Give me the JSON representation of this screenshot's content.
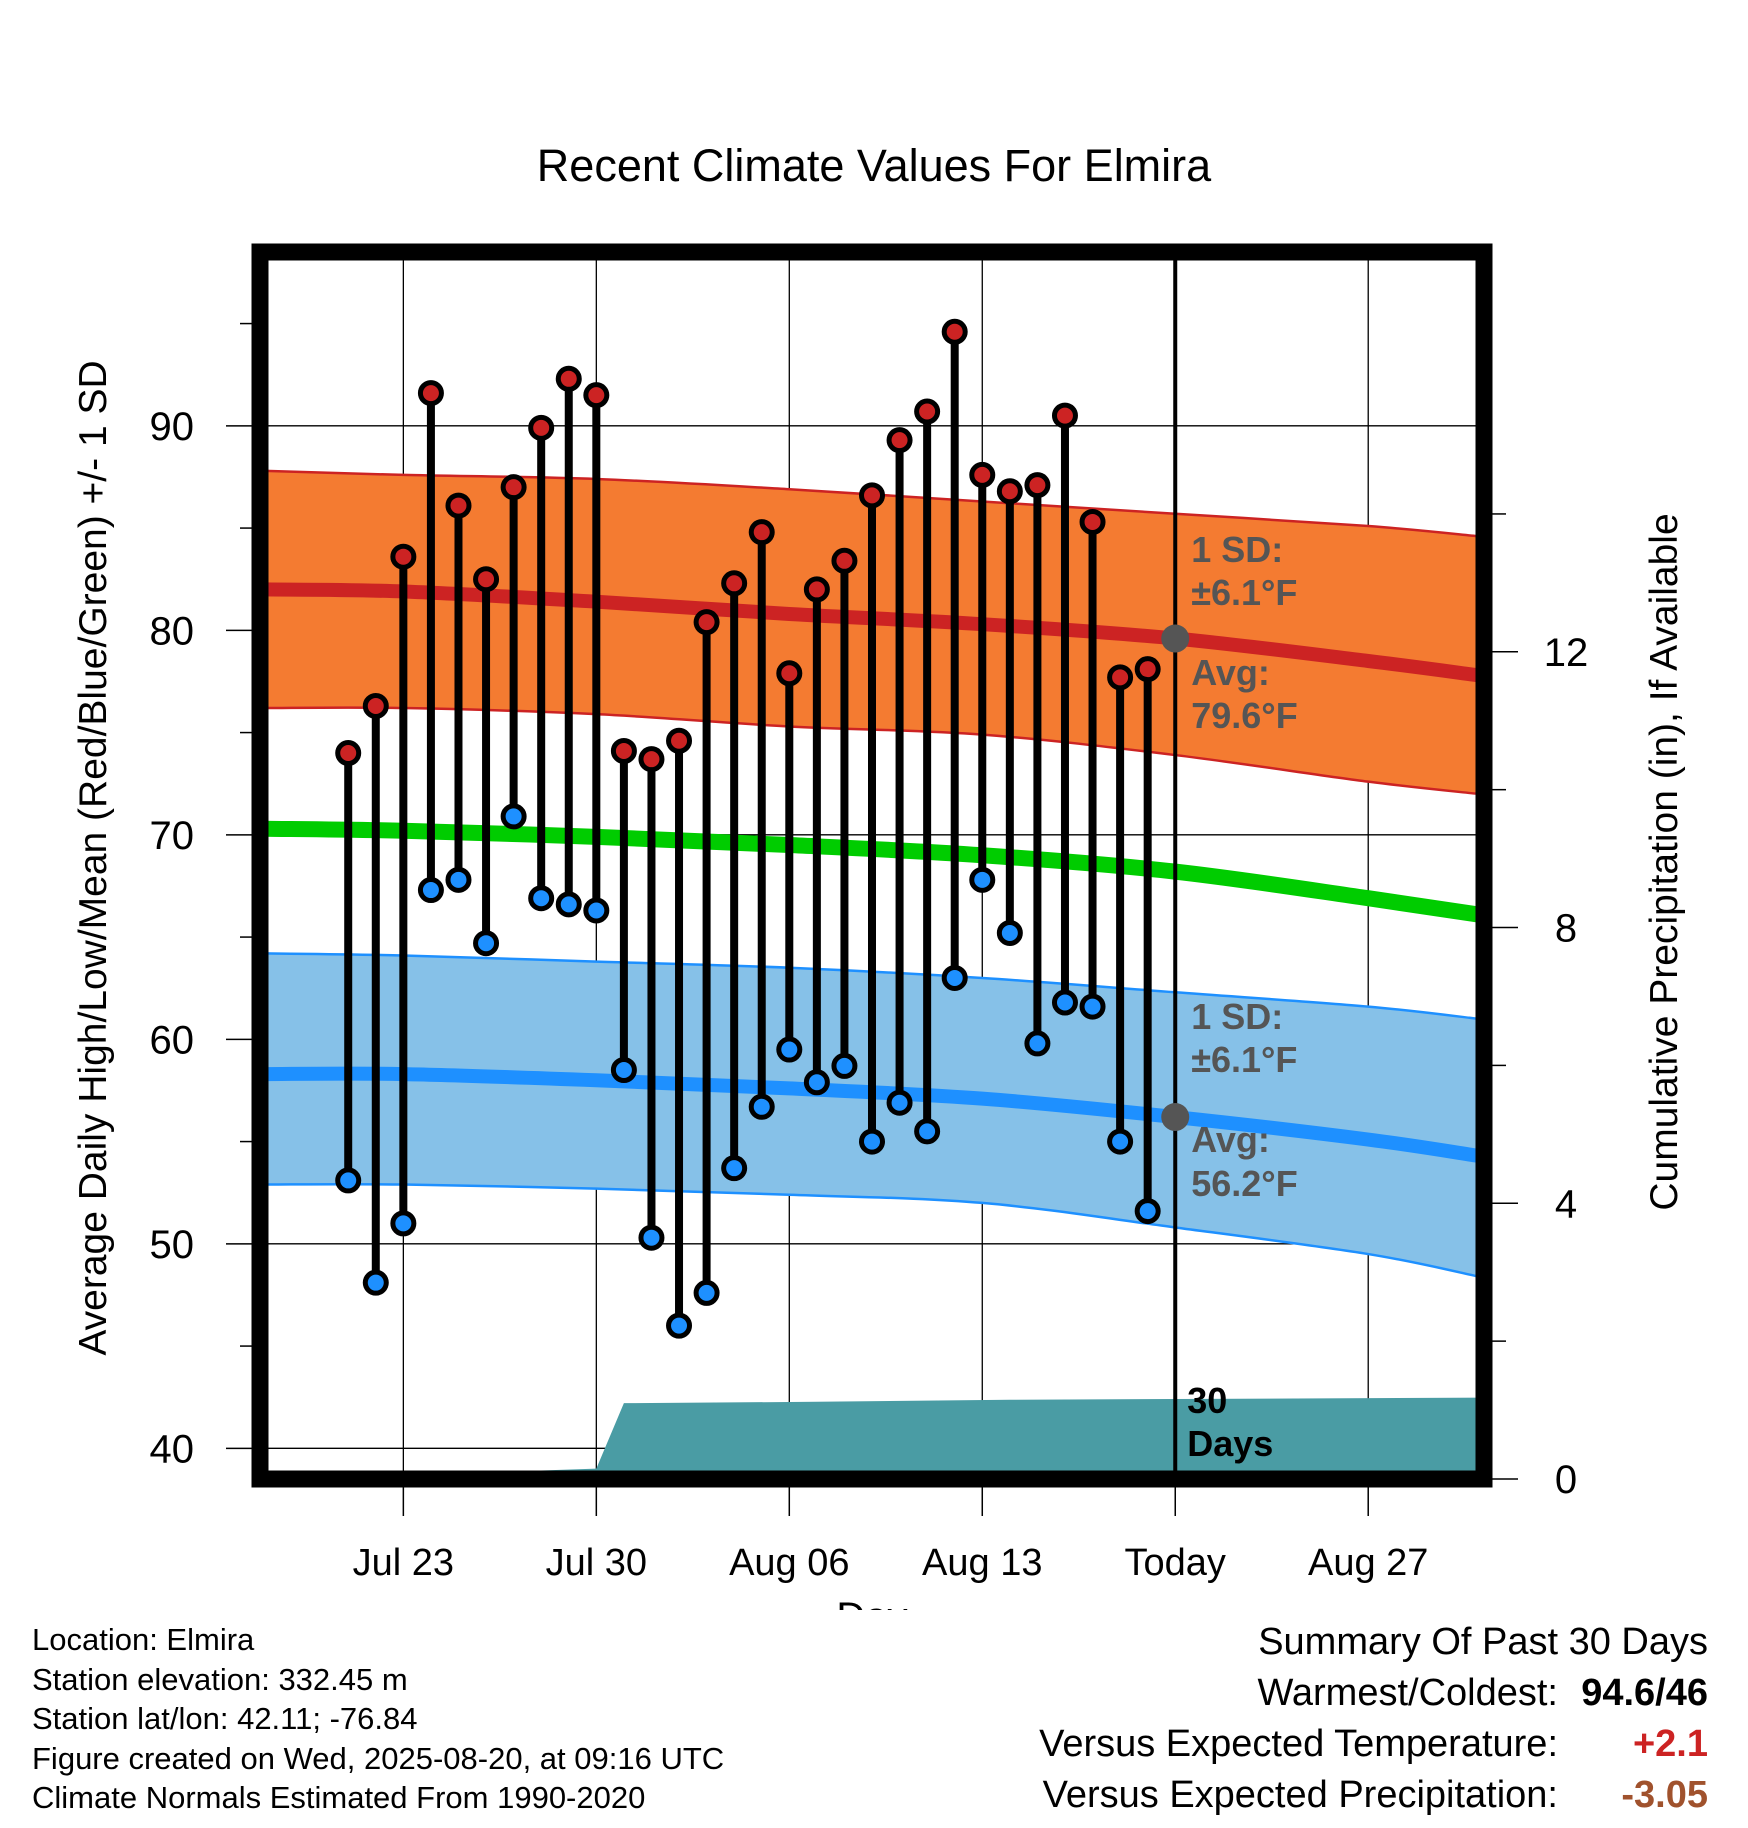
{
  "chart_data": {
    "type": "line",
    "title": "Recent Climate Values For Elmira",
    "xlabel": "Day",
    "ylabel_left": "Average Daily High/Low/Mean (Red/Blue/Green) +/- 1 SD",
    "ylabel_right": "Cumulative Precipitation (in), If Available",
    "y_left_range": [
      38.5,
      98.5
    ],
    "y_left_ticks": [
      "40",
      "50",
      "60",
      "70",
      "80",
      "90"
    ],
    "y_right_range": [
      0,
      17.8
    ],
    "y_right_ticks": [
      "0",
      "4",
      "8",
      "12"
    ],
    "x_range_days": [
      -33.2,
      11.2
    ],
    "x_ticks": [
      {
        "day": -28,
        "label": "Jul 23"
      },
      {
        "day": -21,
        "label": "Jul 30"
      },
      {
        "day": -14,
        "label": "Aug 06"
      },
      {
        "day": -7,
        "label": "Aug 13"
      },
      {
        "day": 0,
        "label": "Today"
      },
      {
        "day": 7,
        "label": "Aug 27"
      }
    ],
    "today_day": 0,
    "today_label": [
      "30",
      "Days"
    ],
    "grid": true,
    "observed": [
      {
        "day": -30,
        "high": 74.0,
        "low": 53.1
      },
      {
        "day": -29,
        "high": 76.3,
        "low": 48.1
      },
      {
        "day": -28,
        "high": 83.6,
        "low": 51.0
      },
      {
        "day": -27,
        "high": 91.6,
        "low": 67.3
      },
      {
        "day": -26,
        "high": 86.1,
        "low": 67.8
      },
      {
        "day": -25,
        "high": 82.5,
        "low": 64.7
      },
      {
        "day": -24,
        "high": 87.0,
        "low": 70.9
      },
      {
        "day": -23,
        "high": 89.9,
        "low": 66.9
      },
      {
        "day": -22,
        "high": 92.3,
        "low": 66.6
      },
      {
        "day": -21,
        "high": 91.5,
        "low": 66.3
      },
      {
        "day": -20,
        "high": 74.1,
        "low": 58.5
      },
      {
        "day": -19,
        "high": 73.7,
        "low": 50.3
      },
      {
        "day": -18,
        "high": 74.6,
        "low": 46.0
      },
      {
        "day": -17,
        "high": 80.4,
        "low": 47.6
      },
      {
        "day": -16,
        "high": 82.3,
        "low": 53.7
      },
      {
        "day": -15,
        "high": 84.8,
        "low": 56.7
      },
      {
        "day": -14,
        "high": 77.9,
        "low": 59.5
      },
      {
        "day": -13,
        "high": 82.0,
        "low": 57.9
      },
      {
        "day": -12,
        "high": 83.4,
        "low": 58.7
      },
      {
        "day": -11,
        "high": 86.6,
        "low": 55.0
      },
      {
        "day": -10,
        "high": 89.3,
        "low": 56.9
      },
      {
        "day": -9,
        "high": 90.7,
        "low": 55.5
      },
      {
        "day": -8,
        "high": 94.6,
        "low": 63.0
      },
      {
        "day": -7,
        "high": 87.6,
        "low": 67.8
      },
      {
        "day": -6,
        "high": 86.8,
        "low": 65.2
      },
      {
        "day": -5,
        "high": 87.1,
        "low": 59.8
      },
      {
        "day": -4,
        "high": 90.5,
        "low": 61.8
      },
      {
        "day": -3,
        "high": 85.3,
        "low": 61.6
      },
      {
        "day": -2,
        "high": 77.7,
        "low": 55.0
      },
      {
        "day": -1,
        "high": 78.1,
        "low": 51.6
      }
    ],
    "normal_curves": {
      "days": [
        -33,
        -28,
        -21,
        -14,
        -7,
        0,
        7,
        11
      ],
      "high_mean": [
        82.0,
        81.9,
        81.4,
        80.8,
        80.3,
        79.6,
        78.5,
        77.8
      ],
      "high_upper": [
        87.8,
        87.6,
        87.4,
        86.9,
        86.3,
        85.7,
        85.1,
        84.6
      ],
      "high_lower": [
        76.2,
        76.2,
        75.9,
        75.3,
        74.9,
        73.9,
        72.6,
        72.0
      ],
      "mean_line": [
        70.3,
        70.2,
        69.9,
        69.5,
        69.0,
        68.2,
        66.9,
        66.1
      ],
      "low_mean": [
        58.3,
        58.3,
        58.0,
        57.6,
        57.1,
        56.2,
        55.1,
        54.3
      ],
      "low_upper": [
        64.2,
        64.1,
        63.8,
        63.5,
        63.0,
        62.3,
        61.6,
        61.0
      ],
      "low_lower": [
        52.9,
        52.9,
        52.7,
        52.4,
        52.0,
        50.8,
        49.5,
        48.4
      ]
    },
    "today_markers": {
      "high_avg": 79.6,
      "low_avg": 56.2
    },
    "annotations": {
      "high_sd_title": "1 SD:",
      "high_sd_value": "±6.1°F",
      "high_avg_title": "Avg:",
      "high_avg_value": "79.6°F",
      "low_sd_title": "1 SD:",
      "low_sd_value": "±6.1°F",
      "low_avg_title": "Avg:",
      "low_avg_value": "56.2°F"
    },
    "precipitation_cumulative": [
      {
        "day": -33.2,
        "value": 0.0
      },
      {
        "day": -25.4,
        "value": 0.0
      },
      {
        "day": -24.8,
        "value": 0.1
      },
      {
        "day": -21.0,
        "value": 0.15
      },
      {
        "day": -20.0,
        "value": 1.1
      },
      {
        "day": -13.0,
        "value": 1.12
      },
      {
        "day": -6.0,
        "value": 1.15
      },
      {
        "day": 11.2,
        "value": 1.18
      }
    ],
    "colors": {
      "high_band": "#f47b31",
      "high_line": "#cc2323",
      "low_band": "#86c1e8",
      "low_line": "#1e90ff",
      "mean_line": "#00cc00",
      "precip": "#4a9ca4",
      "marker_high": "#cc2323",
      "marker_low": "#1e90ff",
      "annotation_text": "#555555"
    }
  },
  "info": {
    "location": "Location: Elmira",
    "elevation": "Station elevation: 332.45 m",
    "latlon": "Station lat/lon: 42.11; -76.84",
    "created": "Figure created on Wed, 2025-08-20, at 09:16 UTC",
    "normals": "Climate Normals Estimated From 1990-2020"
  },
  "summary": {
    "title": "Summary Of Past 30 Days",
    "warmest_label": "Warmest/Coldest:",
    "warmest_value": "94.6/46",
    "temp_label": "Versus Expected Temperature:",
    "temp_value": "+2.1",
    "temp_color": "#cc2323",
    "precip_label": "Versus Expected Precipitation:",
    "precip_value": "-3.05",
    "precip_color": "#a0522d"
  }
}
